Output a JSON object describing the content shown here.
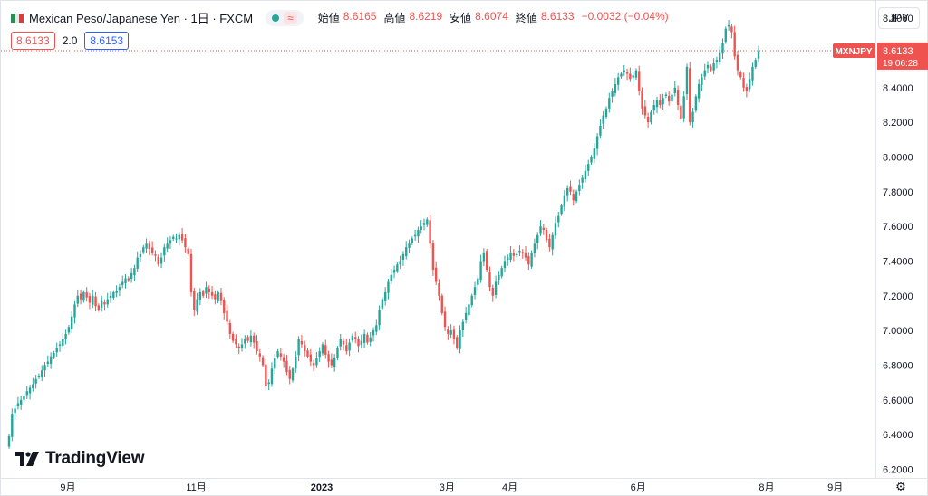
{
  "header": {
    "symbol_title": "Mexican Peso/Japanese Yen · 1日 · FXCM",
    "approx_glyph": "≈",
    "ohlc": [
      {
        "label": "始値",
        "value": "8.6165"
      },
      {
        "label": "高値",
        "value": "8.6219"
      },
      {
        "label": "安値",
        "value": "8.6074"
      },
      {
        "label": "終値",
        "value": "8.6133"
      },
      {
        "label": "",
        "value": "−0.0032 (−0.04%)"
      }
    ],
    "bid": "8.6133",
    "spread": "2.0",
    "ask": "8.6153",
    "currency": "JPY"
  },
  "last_price": {
    "symbol": "MXNJPY",
    "price": "8.6133",
    "countdown": "19:06:28",
    "color": "#ef5350"
  },
  "colors": {
    "up": "#26a69a",
    "down": "#ef5350",
    "text": "#131722",
    "border": "#e0e3eb"
  },
  "icons": {
    "settings": "gear-icon",
    "flag": "mexico-flag-icon",
    "logo": "tradingview-logo-icon"
  },
  "logo_text": "TradingView",
  "chart_data": {
    "type": "candlestick",
    "title": "Mexican Peso/Japanese Yen · 1日 · FXCM",
    "ylim": [
      6.15,
      8.9
    ],
    "y_ticks": [
      "8.8000",
      "8.6000",
      "8.4000",
      "8.2000",
      "8.0000",
      "7.8000",
      "7.6000",
      "7.4000",
      "7.2000",
      "7.0000",
      "6.8000",
      "6.6000",
      "6.4000",
      "6.2000"
    ],
    "x_ticks": [
      {
        "label": "9月",
        "index": 20
      },
      {
        "label": "11月",
        "index": 63
      },
      {
        "label": "2023",
        "index": 105
      },
      {
        "label": "3月",
        "index": 147
      },
      {
        "label": "4月",
        "index": 168
      },
      {
        "label": "6月",
        "index": 211
      },
      {
        "label": "8月",
        "index": 254
      },
      {
        "label": "9月",
        "index": 277
      }
    ],
    "closes": [
      6.39,
      6.52,
      6.55,
      6.58,
      6.6,
      6.62,
      6.65,
      6.67,
      6.69,
      6.72,
      6.74,
      6.77,
      6.8,
      6.82,
      6.85,
      6.87,
      6.9,
      6.92,
      6.95,
      6.98,
      7.02,
      7.08,
      7.15,
      7.2,
      7.18,
      7.22,
      7.19,
      7.16,
      7.2,
      7.14,
      7.12,
      7.17,
      7.15,
      7.18,
      7.2,
      7.22,
      7.23,
      7.25,
      7.28,
      7.3,
      7.29,
      7.33,
      7.36,
      7.42,
      7.44,
      7.48,
      7.5,
      7.47,
      7.45,
      7.43,
      7.38,
      7.42,
      7.48,
      7.5,
      7.52,
      7.54,
      7.53,
      7.55,
      7.52,
      7.48,
      7.44,
      7.22,
      7.12,
      7.18,
      7.22,
      7.2,
      7.25,
      7.22,
      7.2,
      7.18,
      7.22,
      7.17,
      7.1,
      7.05,
      6.98,
      6.94,
      6.92,
      6.9,
      6.92,
      6.95,
      6.94,
      6.97,
      6.93,
      6.88,
      6.85,
      6.8,
      6.68,
      6.7,
      6.78,
      6.84,
      6.88,
      6.85,
      6.82,
      6.76,
      6.72,
      6.78,
      6.85,
      6.95,
      6.92,
      6.88,
      6.85,
      6.82,
      6.8,
      6.84,
      6.88,
      6.92,
      6.86,
      6.82,
      6.8,
      6.84,
      6.9,
      6.95,
      6.92,
      6.88,
      6.93,
      6.97,
      6.95,
      6.91,
      6.94,
      6.98,
      6.93,
      6.96,
      7.0,
      7.03,
      7.12,
      7.18,
      7.22,
      7.28,
      7.32,
      7.35,
      7.38,
      7.4,
      7.44,
      7.48,
      7.5,
      7.53,
      7.55,
      7.58,
      7.6,
      7.62,
      7.64,
      7.5,
      7.35,
      7.28,
      7.2,
      7.1,
      7.02,
      6.98,
      7.0,
      6.95,
      6.9,
      7.0,
      7.05,
      7.1,
      7.15,
      7.2,
      7.25,
      7.3,
      7.4,
      7.45,
      7.35,
      7.25,
      7.2,
      7.28,
      7.32,
      7.36,
      7.4,
      7.42,
      7.45,
      7.43,
      7.44,
      7.46,
      7.45,
      7.42,
      7.38,
      7.45,
      7.5,
      7.55,
      7.6,
      7.58,
      7.52,
      7.48,
      7.55,
      7.62,
      7.66,
      7.72,
      7.78,
      7.82,
      7.8,
      7.75,
      7.8,
      7.84,
      7.88,
      7.92,
      7.96,
      8.0,
      8.05,
      8.12,
      8.18,
      8.24,
      8.28,
      8.34,
      8.38,
      8.42,
      8.46,
      8.48,
      8.5,
      8.48,
      8.45,
      8.47,
      8.5,
      8.38,
      8.28,
      8.24,
      8.2,
      8.26,
      8.3,
      8.33,
      8.3,
      8.34,
      8.36,
      8.32,
      8.36,
      8.4,
      8.3,
      8.22,
      8.35,
      8.52,
      8.2,
      8.26,
      8.35,
      8.42,
      8.46,
      8.5,
      8.53,
      8.5,
      8.54,
      8.56,
      8.6,
      8.66,
      8.74,
      8.76,
      8.72,
      8.58,
      8.5,
      8.46,
      8.4,
      8.38,
      8.45,
      8.52,
      8.56,
      8.61
    ]
  }
}
